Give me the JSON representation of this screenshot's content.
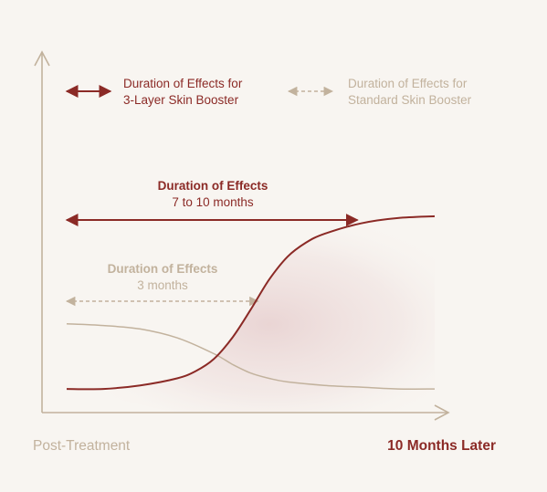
{
  "chart_data": {
    "type": "line",
    "title": "",
    "xlabel": "",
    "ylabel": "",
    "x_start_label": "Post-Treatment",
    "x_end_label": "10 Months Later",
    "legend": [
      {
        "line1": "Duration of Effects for",
        "line2": "3-Layer Skin Booster",
        "color": "#8b2a26",
        "style": "solid"
      },
      {
        "line1": "Duration of Effects for",
        "line2": "Standard Skin Booster",
        "color": "#c2b29d",
        "style": "dashed"
      }
    ],
    "series": [
      {
        "name": "3-Layer Skin Booster",
        "color": "#8b2a26",
        "x": [
          0,
          0.1,
          0.2,
          0.3,
          0.35,
          0.4,
          0.45,
          0.5,
          0.55,
          0.6,
          0.65,
          0.7,
          0.8,
          0.9,
          1.0
        ],
        "y": [
          0.01,
          0.01,
          0.03,
          0.07,
          0.11,
          0.18,
          0.3,
          0.46,
          0.63,
          0.76,
          0.84,
          0.89,
          0.95,
          0.98,
          0.99
        ]
      },
      {
        "name": "Standard Skin Booster",
        "color": "#c2b29d",
        "x": [
          0,
          0.1,
          0.2,
          0.3,
          0.4,
          0.45,
          0.5,
          0.55,
          0.6,
          0.7,
          0.8,
          0.9,
          1.0
        ],
        "y": [
          0.38,
          0.37,
          0.35,
          0.3,
          0.21,
          0.15,
          0.1,
          0.07,
          0.05,
          0.03,
          0.02,
          0.01,
          0.01
        ]
      }
    ],
    "annotations": [
      {
        "title": "Duration of Effects",
        "value": "7 to 10 months",
        "color": "#8b2a26",
        "style": "solid",
        "x_start": 0,
        "x_end": 0.8
      },
      {
        "title": "Duration of Effects",
        "value": "3 months",
        "color": "#c2b29d",
        "style": "dashed",
        "x_start": 0,
        "x_end": 0.53
      }
    ],
    "colors": {
      "axis": "#c2b29d",
      "accent": "#8b2a26",
      "muted": "#c2b29d",
      "background": "#f8f5f1"
    }
  }
}
